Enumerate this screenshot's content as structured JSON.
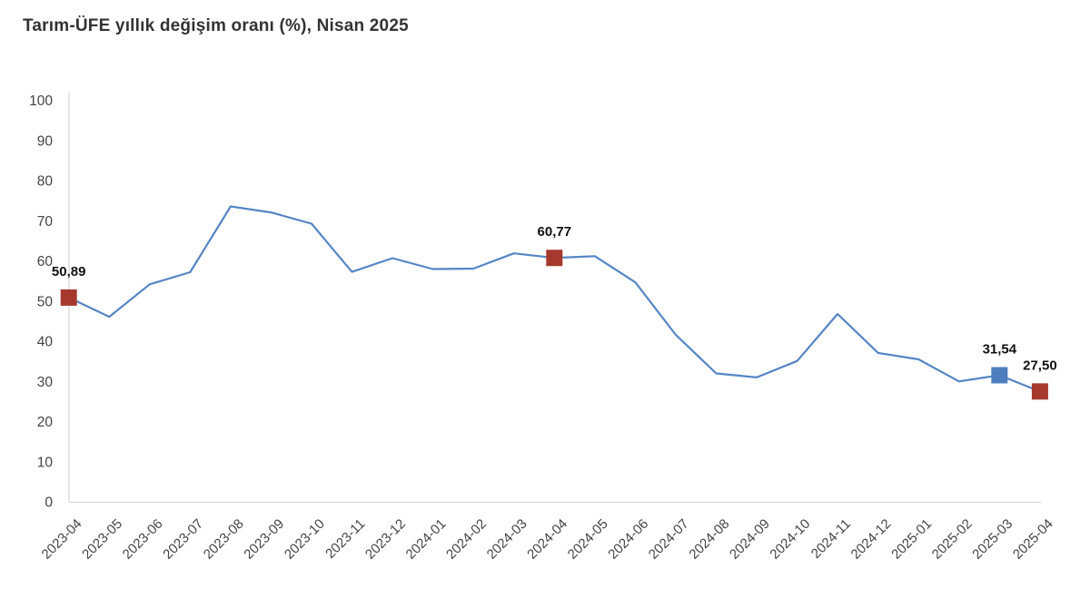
{
  "page": {
    "title": "Tarım-ÜFE yıllık değişim oranı (%), Nisan 2025"
  },
  "chart_data": {
    "type": "line",
    "title": "Tarım-ÜFE yıllık değişim oranı (%), Nisan 2025",
    "categories": [
      "2023-04",
      "2023-05",
      "2023-06",
      "2023-07",
      "2023-08",
      "2023-09",
      "2023-10",
      "2023-11",
      "2023-12",
      "2024-01",
      "2024-02",
      "2024-03",
      "2024-04",
      "2024-05",
      "2024-06",
      "2024-07",
      "2024-08",
      "2024-09",
      "2024-10",
      "2024-11",
      "2024-12",
      "2025-01",
      "2025-02",
      "2025-03",
      "2025-04"
    ],
    "values": [
      50.89,
      46.1,
      54.2,
      57.2,
      73.6,
      72.1,
      69.3,
      57.3,
      60.7,
      58.0,
      58.1,
      61.9,
      60.77,
      61.2,
      54.7,
      41.6,
      32.0,
      31.0,
      35.1,
      46.8,
      37.1,
      35.5,
      30.0,
      31.54,
      27.5
    ],
    "xlabel": "",
    "ylabel": "",
    "ylim": [
      0,
      100
    ],
    "y_tick_step": 10,
    "y_tick_labels": [
      "0",
      "10",
      "20",
      "30",
      "40",
      "50",
      "60",
      "70",
      "80",
      "90",
      "100"
    ],
    "grid": false,
    "legend": false,
    "annotations": [
      {
        "category": "2023-04",
        "index": 0,
        "value": 50.89,
        "label": "50,89",
        "marker_color": "#a5392e"
      },
      {
        "category": "2024-04",
        "index": 12,
        "value": 60.77,
        "label": "60,77",
        "marker_color": "#a5392e"
      },
      {
        "category": "2025-03",
        "index": 23,
        "value": 31.54,
        "label": "31,54",
        "marker_color": "#4d7fbe"
      },
      {
        "category": "2025-04",
        "index": 24,
        "value": 27.5,
        "label": "27,50",
        "marker_color": "#a5392e"
      }
    ],
    "colors": {
      "line": "#5585c4",
      "marker_red": "#a5392e",
      "marker_blue": "#4d7fbe",
      "axis_line": "#d9d9d9",
      "tick_text": "#444444",
      "annotation_text": "#111111",
      "title_text": "#333333"
    }
  }
}
